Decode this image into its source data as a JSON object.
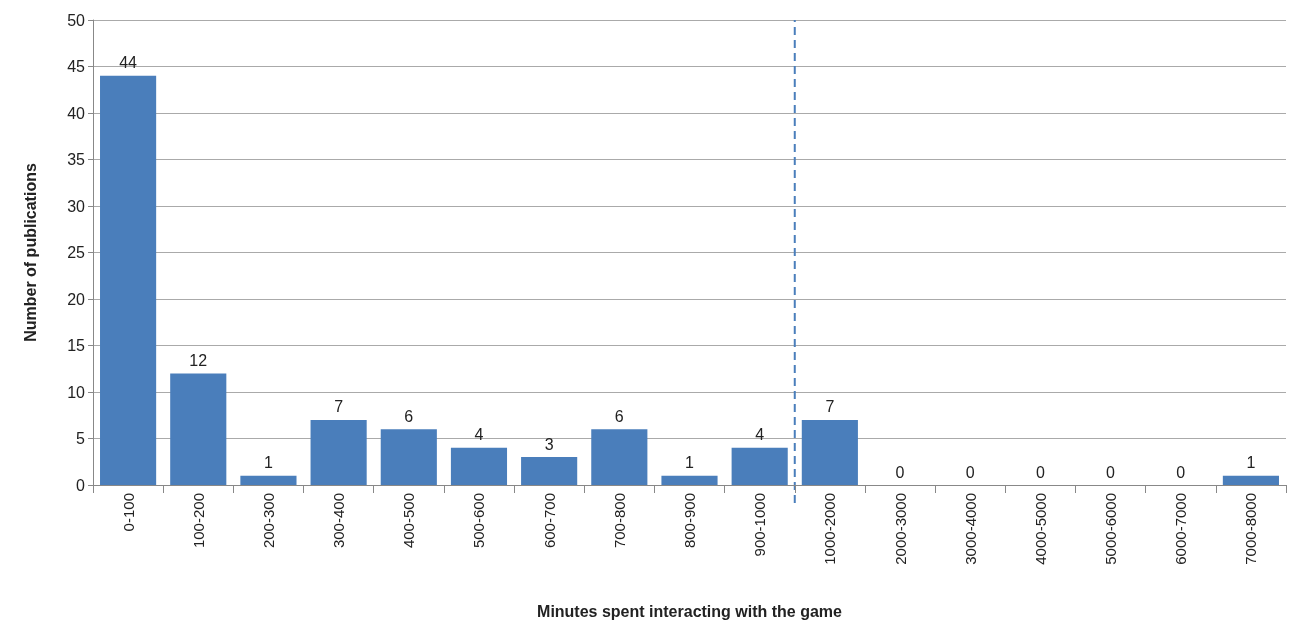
{
  "chart_data": {
    "type": "bar",
    "xlabel": "Minutes spent interacting with the game",
    "ylabel": "Number of publications",
    "categories": [
      "0-100",
      "100-200",
      "200-300",
      "300-400",
      "400-500",
      "500-600",
      "600-700",
      "700-800",
      "800-900",
      "900-1000",
      "1000-2000",
      "2000-3000",
      "3000-4000",
      "4000-5000",
      "5000-6000",
      "6000-7000",
      "7000-8000"
    ],
    "values": [
      44,
      12,
      1,
      7,
      6,
      4,
      3,
      6,
      1,
      4,
      7,
      0,
      0,
      0,
      0,
      0,
      1
    ],
    "color": "#4a7ebb",
    "ylim": [
      0,
      50
    ],
    "yticks": [
      0,
      5,
      10,
      15,
      20,
      25,
      30,
      35,
      40,
      45,
      50
    ],
    "grid": "y",
    "data_labels": true,
    "ref_lines": [
      {
        "axis": "x",
        "value": "1000-2000",
        "label": null,
        "color": "#4a7ebb",
        "line_style": "dashed"
      }
    ]
  }
}
